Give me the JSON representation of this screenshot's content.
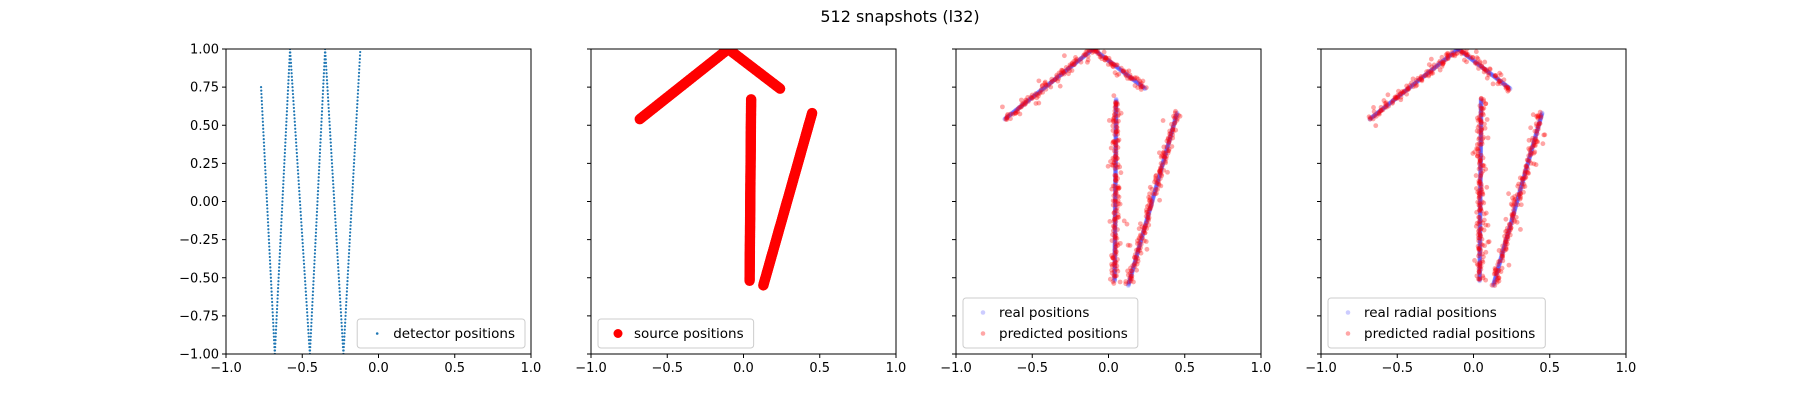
{
  "figure": {
    "title": "512 snapshots (l32)"
  },
  "chart_data": [
    {
      "type": "scatter",
      "xlim": [
        -1.0,
        1.0
      ],
      "ylim": [
        -1.0,
        1.0
      ],
      "xticks": [
        "−1.0",
        "−0.5",
        "0.0",
        "0.5",
        "1.0"
      ],
      "yticks": [
        "1.00",
        "0.75",
        "0.50",
        "0.25",
        "0.00",
        "−0.25",
        "−0.50",
        "−0.75",
        "−1.00"
      ],
      "show_ytick_labels": true,
      "grid": false,
      "legend_position": "lower-right",
      "series": [
        {
          "name": "detector positions",
          "color": "#1f77b4",
          "marker": "small-dot",
          "alpha": 1.0,
          "polyline": [
            [
              -0.77,
              0.75
            ],
            [
              -0.68,
              -1.0
            ],
            [
              -0.58,
              1.0
            ],
            [
              -0.45,
              -1.0
            ],
            [
              -0.35,
              1.0
            ],
            [
              -0.23,
              -1.0
            ],
            [
              -0.12,
              0.98
            ]
          ]
        }
      ]
    },
    {
      "type": "scatter",
      "xlim": [
        -1.0,
        1.0
      ],
      "ylim": [
        -1.0,
        1.0
      ],
      "xticks": [
        "−1.0",
        "−0.5",
        "0.0",
        "0.5",
        "1.0"
      ],
      "yticks": [],
      "show_ytick_labels": false,
      "grid": false,
      "legend_position": "lower-left",
      "series": [
        {
          "name": "source positions",
          "color": "#ff0000",
          "marker": "large-dot",
          "alpha": 1.0,
          "segments": [
            [
              [
                -0.68,
                0.54
              ],
              [
                -0.1,
                1.0
              ]
            ],
            [
              [
                -0.1,
                1.0
              ],
              [
                0.24,
                0.74
              ]
            ],
            [
              [
                0.05,
                0.67
              ],
              [
                0.04,
                -0.52
              ]
            ],
            [
              [
                0.13,
                -0.55
              ],
              [
                0.45,
                0.58
              ]
            ]
          ]
        }
      ]
    },
    {
      "type": "scatter",
      "xlim": [
        -1.0,
        1.0
      ],
      "ylim": [
        -1.0,
        1.0
      ],
      "xticks": [
        "−1.0",
        "−0.5",
        "0.0",
        "0.5",
        "1.0"
      ],
      "yticks": [],
      "show_ytick_labels": false,
      "grid": false,
      "legend_position": "lower-left",
      "series": [
        {
          "name": "real positions",
          "color": "#0000ff",
          "marker": "dot",
          "alpha": 0.2,
          "segments": [
            [
              [
                -0.68,
                0.54
              ],
              [
                -0.1,
                1.0
              ]
            ],
            [
              [
                -0.1,
                1.0
              ],
              [
                0.24,
                0.74
              ]
            ],
            [
              [
                0.05,
                0.67
              ],
              [
                0.04,
                -0.52
              ]
            ],
            [
              [
                0.13,
                -0.55
              ],
              [
                0.45,
                0.58
              ]
            ]
          ]
        },
        {
          "name": "predicted positions",
          "color": "#ff0000",
          "marker": "dot",
          "alpha": 0.35,
          "scatter_around_real": true
        }
      ]
    },
    {
      "type": "scatter",
      "xlim": [
        -1.0,
        1.0
      ],
      "ylim": [
        -1.0,
        1.0
      ],
      "xticks": [
        "−1.0",
        "−0.5",
        "0.0",
        "0.5",
        "1.0"
      ],
      "yticks": [],
      "show_ytick_labels": false,
      "grid": false,
      "legend_position": "lower-left",
      "series": [
        {
          "name": "real radial positions",
          "color": "#0000ff",
          "marker": "dot",
          "alpha": 0.2,
          "segments": [
            [
              [
                -0.68,
                0.54
              ],
              [
                -0.1,
                1.0
              ]
            ],
            [
              [
                -0.1,
                1.0
              ],
              [
                0.24,
                0.74
              ]
            ],
            [
              [
                0.05,
                0.67
              ],
              [
                0.04,
                -0.52
              ]
            ],
            [
              [
                0.13,
                -0.55
              ],
              [
                0.45,
                0.58
              ]
            ]
          ]
        },
        {
          "name": "predicted radial positions",
          "color": "#ff0000",
          "marker": "dot",
          "alpha": 0.35,
          "scatter_around_real": true
        }
      ]
    }
  ]
}
